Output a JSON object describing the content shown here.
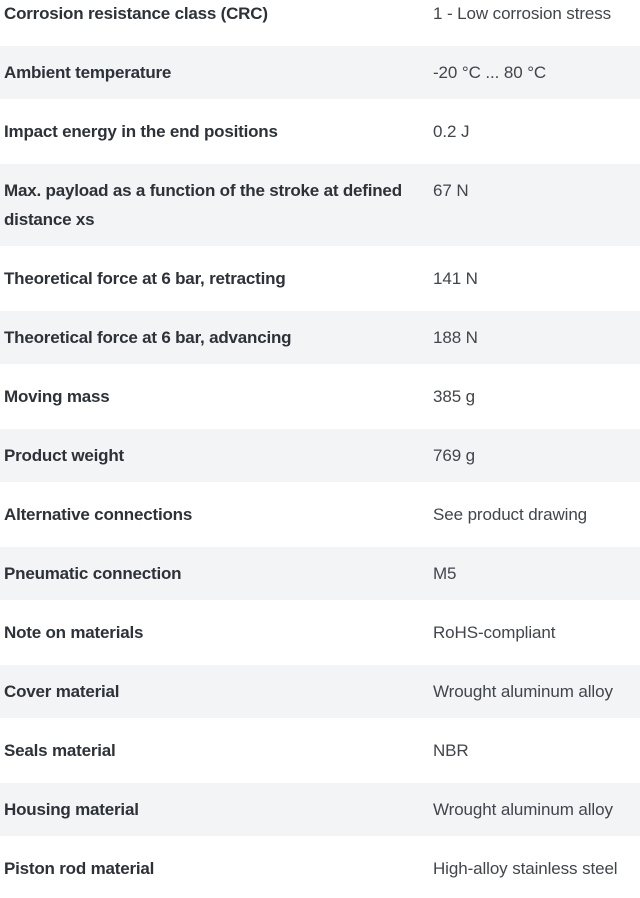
{
  "colors": {
    "row_stripe": "#f3f4f6",
    "label_text": "#2d3138",
    "value_text": "#41454c",
    "background": "#ffffff"
  },
  "table": {
    "rows": [
      {
        "label": "Corrosion resistance class (CRC)",
        "value": "1 - Low corrosion stress"
      },
      {
        "label": "Ambient temperature",
        "value": "-20 °C ... 80 °C"
      },
      {
        "label": "Impact energy in the end positions",
        "value": "0.2 J"
      },
      {
        "label": "Max. payload as a function of the stroke at defined distance xs",
        "value": "67 N"
      },
      {
        "label": "Theoretical force at 6 bar, retracting",
        "value": "141 N"
      },
      {
        "label": "Theoretical force at 6 bar, advancing",
        "value": "188 N"
      },
      {
        "label": "Moving mass",
        "value": "385 g"
      },
      {
        "label": "Product weight",
        "value": "769 g"
      },
      {
        "label": "Alternative connections",
        "value": "See product drawing"
      },
      {
        "label": "Pneumatic connection",
        "value": "M5"
      },
      {
        "label": "Note on materials",
        "value": "RoHS-compliant"
      },
      {
        "label": "Cover material",
        "value": "Wrought aluminum alloy"
      },
      {
        "label": "Seals material",
        "value": "NBR"
      },
      {
        "label": "Housing material",
        "value": "Wrought aluminum alloy"
      },
      {
        "label": "Piston rod material",
        "value": "High-alloy stainless steel"
      }
    ]
  }
}
